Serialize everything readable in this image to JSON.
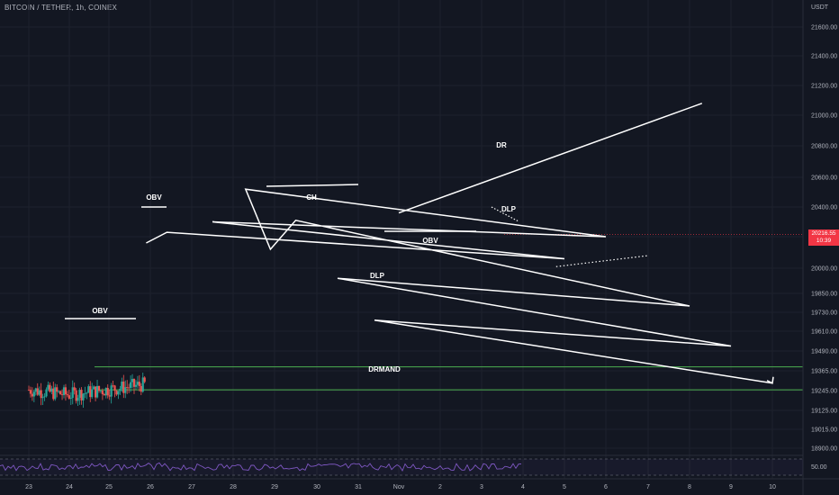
{
  "header": {
    "symbol_line": "BITCOIN / TETHER, 1h, COINEX",
    "currency": "USDT"
  },
  "colors": {
    "background": "#131722",
    "up": "#26a69a",
    "down": "#ef5350",
    "text": "#b2b5be",
    "annotation": "#ffffff",
    "demand_zone": "#4caf50",
    "rsi": "#7e57c2",
    "price_tag": "#f23645"
  },
  "price_tag": {
    "price": "20216.55",
    "countdown": "10:39"
  },
  "annotations": {
    "obv_1": "OBV",
    "obv_2": "OBV",
    "obv_3": "OBV",
    "ch": "CH",
    "dr": "DR",
    "dlp_main": "DLP",
    "dlp_small": "DLP",
    "demand": "DRMAND"
  },
  "chart_data": {
    "type": "candlestick",
    "title": "BITCOIN / TETHER, 1h, COINEX",
    "x_tick_labels": [
      "23",
      "24",
      "25",
      "26",
      "27",
      "28",
      "29",
      "30",
      "31",
      "Nov",
      "2",
      "3",
      "4",
      "5",
      "6",
      "7",
      "8",
      "9",
      "10"
    ],
    "y_tick_labels": [
      "21600.00",
      "21400.00",
      "21200.00",
      "21000.00",
      "20800.00",
      "20600.00",
      "20400.00",
      "20200.00",
      "20000.00",
      "19850.00",
      "19730.00",
      "19610.00",
      "19490.00",
      "19365.00",
      "19245.00",
      "19125.00",
      "19015.00",
      "18900.00"
    ],
    "y_range": [
      18900,
      21650
    ],
    "price_path_keypoints": [
      {
        "x": "23",
        "y": 19250
      },
      {
        "x": "24",
        "y": 19220
      },
      {
        "x": "24.05",
        "y": 19560
      },
      {
        "x": "24.5",
        "y": 19320
      },
      {
        "x": "25.3",
        "y": 19300
      },
      {
        "x": "25.5",
        "y": 19620
      },
      {
        "x": "25.8",
        "y": 20210
      },
      {
        "x": "26.3",
        "y": 20400
      },
      {
        "x": "26.7",
        "y": 20900
      },
      {
        "x": "27.5",
        "y": 20700
      },
      {
        "x": "27.9",
        "y": 20200
      },
      {
        "x": "28.5",
        "y": 20050
      },
      {
        "x": "28.8",
        "y": 20600
      },
      {
        "x": "29.5",
        "y": 20900
      },
      {
        "x": "30",
        "y": 20800
      },
      {
        "x": "30.5",
        "y": 20700
      },
      {
        "x": "31",
        "y": 20600
      },
      {
        "x": "31.3",
        "y": 20720
      },
      {
        "x": "31.6",
        "y": 20350
      },
      {
        "x": "Nov",
        "y": 20500
      },
      {
        "x": "1.5",
        "y": 20600
      },
      {
        "x": "2",
        "y": 20450
      },
      {
        "x": "2.7",
        "y": 20500
      },
      {
        "x": "2.8",
        "y": 20800
      },
      {
        "x": "2.9",
        "y": 20150
      },
      {
        "x": "3.2",
        "y": 20380
      },
      {
        "x": "3.5",
        "y": 20100
      },
      {
        "x": "3.9",
        "y": 20216.55
      }
    ],
    "levels": {
      "demand_zone": [
        19250,
        19390
      ],
      "dlp_support_line": {
        "from": {
          "x": "25.8",
          "y": 20010
        },
        "to": {
          "x": "7",
          "y": 20080
        }
      },
      "dr_resistance_line": {
        "from": {
          "x": "29.3",
          "y": 21080
        },
        "to": {
          "x": "10.5",
          "y": 20360
        }
      }
    },
    "projection": [
      {
        "x": "3.9",
        "y": 20160
      },
      {
        "x": "4.4",
        "y": 20230
      },
      {
        "x": "5",
        "y": 20060
      },
      {
        "x": "5.5",
        "y": 20300
      },
      {
        "x": "6",
        "y": 20200
      },
      {
        "x": "6.3",
        "y": 20520
      },
      {
        "x": "6.9",
        "y": 20120
      },
      {
        "x": "7.5",
        "y": 20310
      },
      {
        "x": "8",
        "y": 19770
      },
      {
        "x": "8.5",
        "y": 19940
      },
      {
        "x": "9",
        "y": 19520
      },
      {
        "x": "9.4",
        "y": 19680
      },
      {
        "x": "10",
        "y": 19290
      }
    ],
    "rsi": {
      "label": "50.00",
      "upper": 70,
      "lower": 30
    }
  }
}
